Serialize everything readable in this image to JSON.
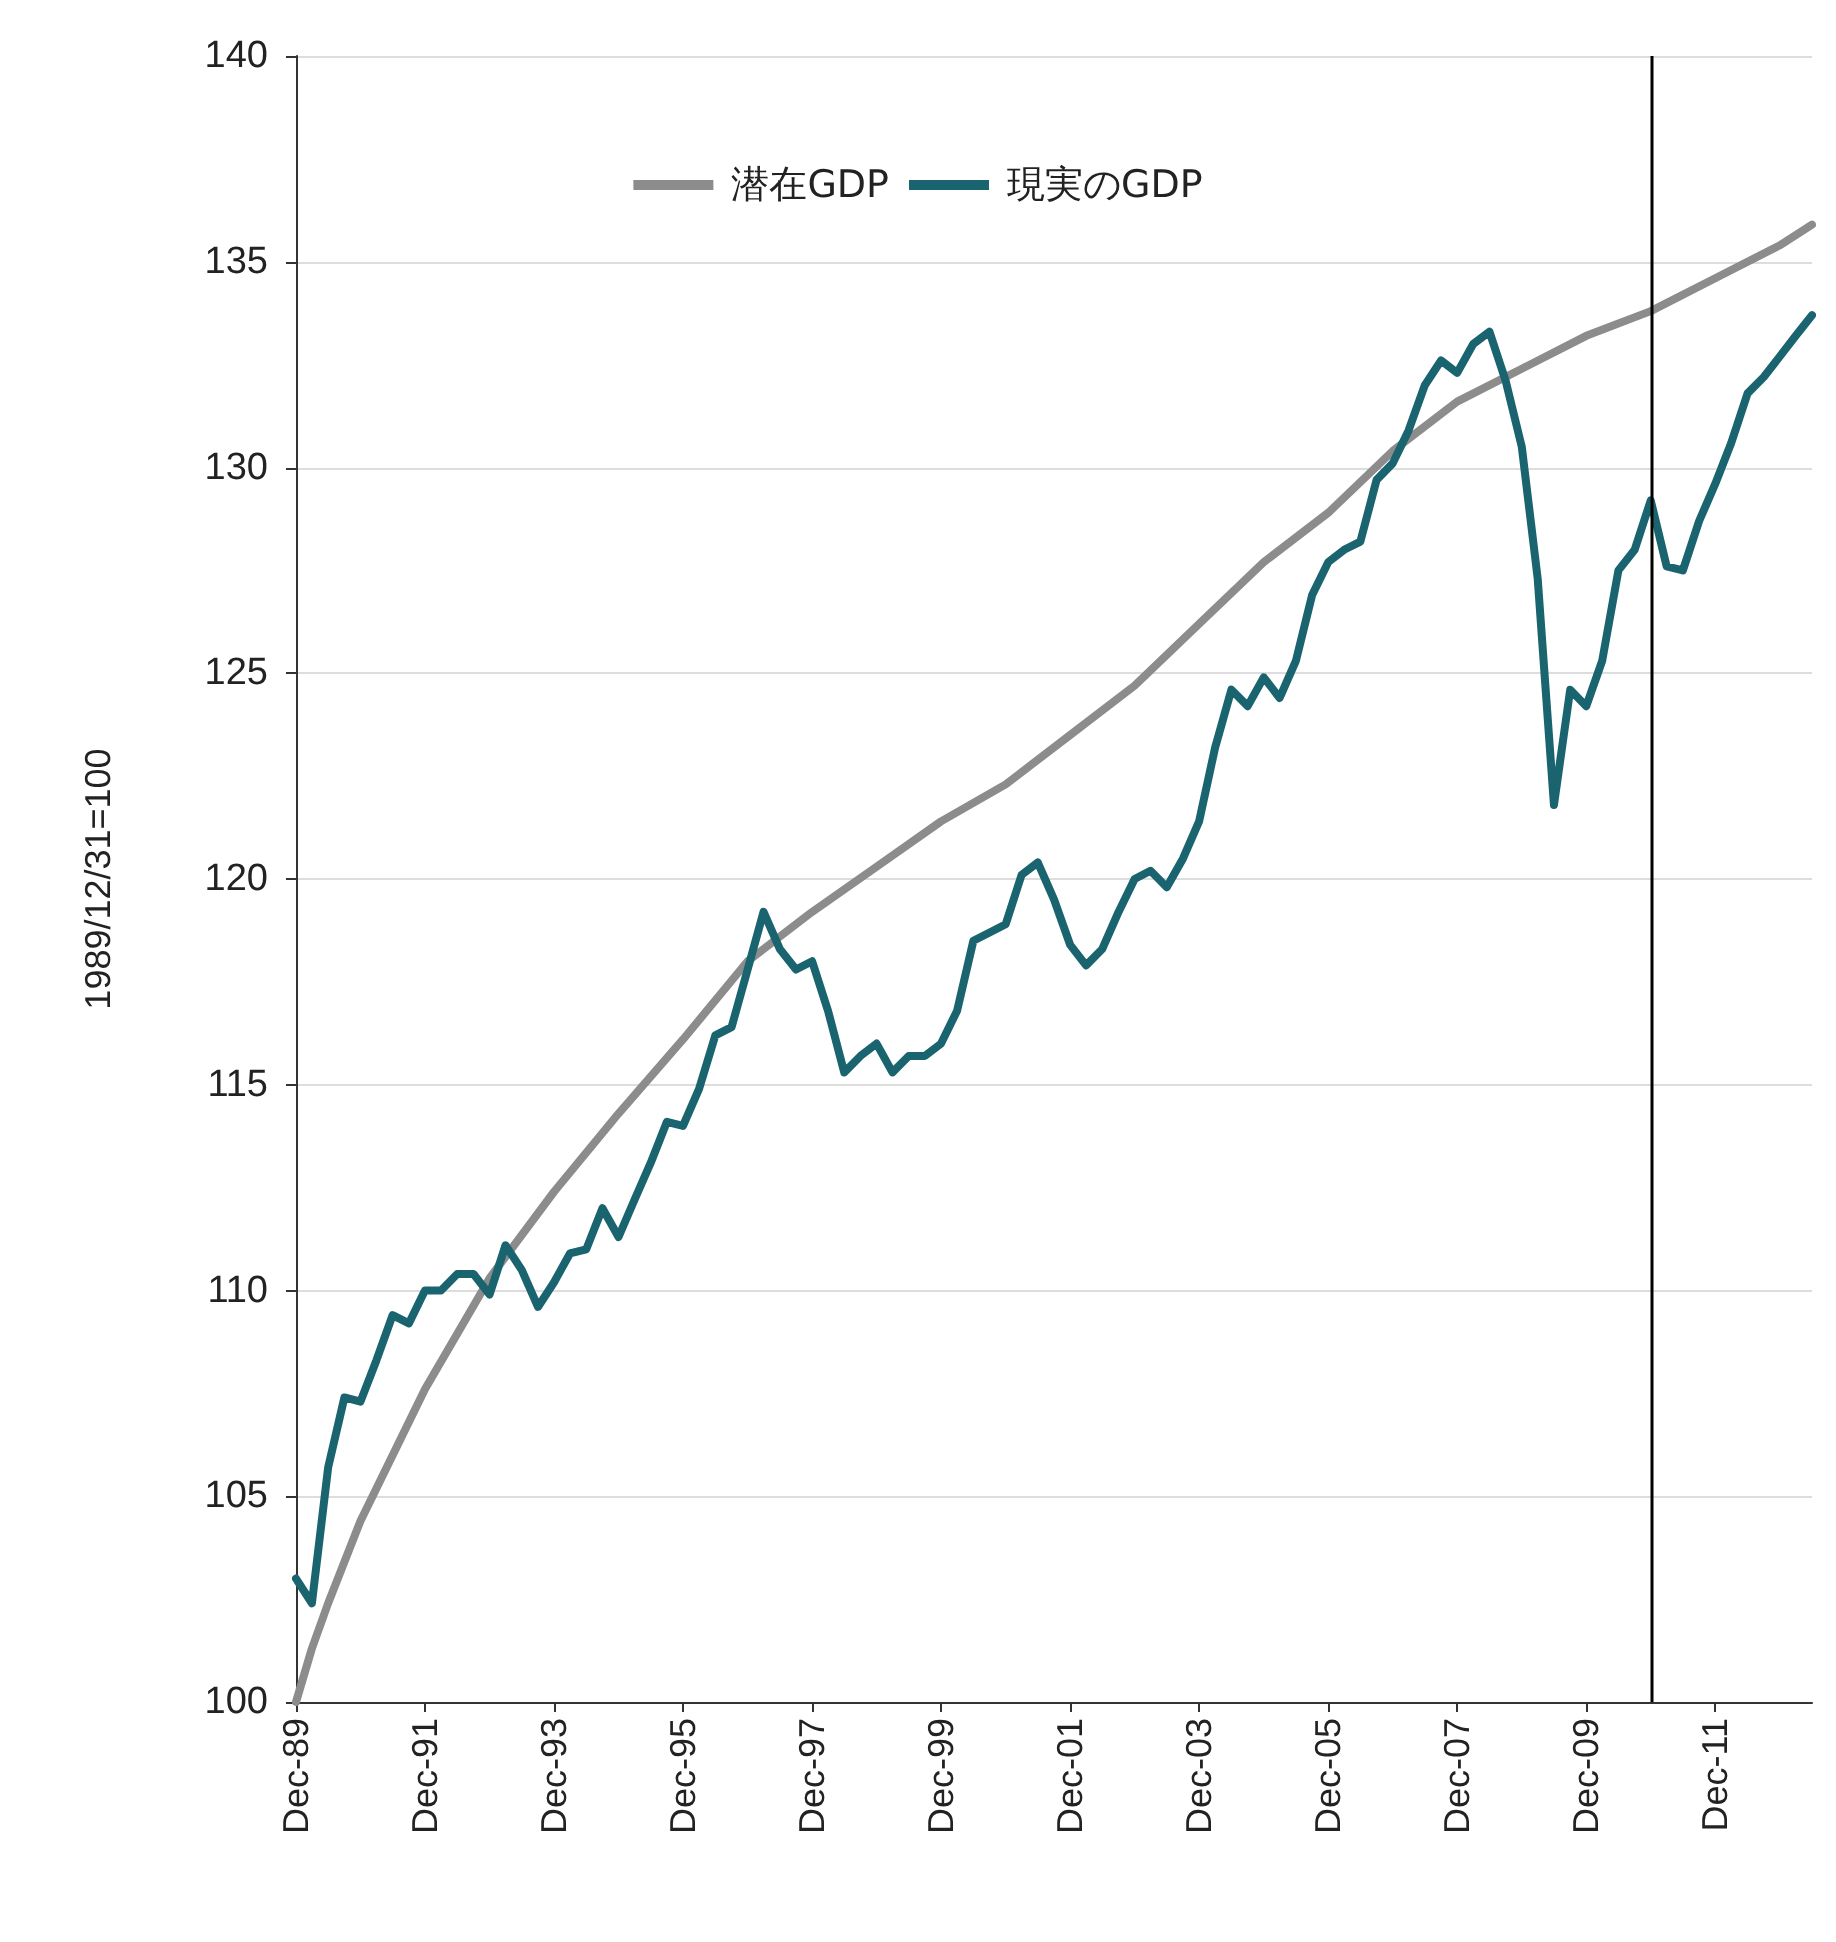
{
  "chart_data": {
    "type": "line",
    "ylabel": "1989/12/31=100",
    "x": [
      "1989-12",
      "1990-03",
      "1990-06",
      "1990-09",
      "1990-12",
      "1991-03",
      "1991-06",
      "1991-09",
      "1991-12",
      "1992-03",
      "1992-06",
      "1992-09",
      "1992-12",
      "1993-03",
      "1993-06",
      "1993-09",
      "1993-12",
      "1994-03",
      "1994-06",
      "1994-09",
      "1994-12",
      "1995-03",
      "1995-06",
      "1995-09",
      "1995-12",
      "1996-03",
      "1996-06",
      "1996-09",
      "1996-12",
      "1997-03",
      "1997-06",
      "1997-09",
      "1997-12",
      "1998-03",
      "1998-06",
      "1998-09",
      "1998-12",
      "1999-03",
      "1999-06",
      "1999-09",
      "1999-12",
      "2000-03",
      "2000-06",
      "2000-09",
      "2000-12",
      "2001-03",
      "2001-06",
      "2001-09",
      "2001-12",
      "2002-03",
      "2002-06",
      "2002-09",
      "2002-12",
      "2003-03",
      "2003-06",
      "2003-09",
      "2003-12",
      "2004-03",
      "2004-06",
      "2004-09",
      "2004-12",
      "2005-03",
      "2005-06",
      "2005-09",
      "2005-12",
      "2006-03",
      "2006-06",
      "2006-09",
      "2006-12",
      "2007-03",
      "2007-06",
      "2007-09",
      "2007-12",
      "2008-03",
      "2008-06",
      "2008-09",
      "2008-12",
      "2009-03",
      "2009-06",
      "2009-09",
      "2009-12",
      "2010-03",
      "2010-06",
      "2010-09",
      "2010-12",
      "2011-03",
      "2011-06",
      "2011-09",
      "2011-12",
      "2012-03",
      "2012-06",
      "2012-09",
      "2012-12",
      "2013-03",
      "2013-06"
    ],
    "series": [
      {
        "name": "潜在GDP",
        "color": "#8c8c8c",
        "x": [
          "1989-12",
          "1990-03",
          "1990-06",
          "1990-12",
          "1991-12",
          "1992-12",
          "1993-12",
          "1994-12",
          "1995-12",
          "1996-12",
          "1997-12",
          "1998-12",
          "1999-12",
          "2000-12",
          "2001-12",
          "2002-12",
          "2003-12",
          "2004-12",
          "2005-12",
          "2006-12",
          "2007-12",
          "2008-12",
          "2009-12",
          "2010-12",
          "2011-12",
          "2012-12",
          "2013-06"
        ],
        "values": [
          100.0,
          101.3,
          102.4,
          104.4,
          107.6,
          110.3,
          112.4,
          114.3,
          116.1,
          118.0,
          119.2,
          120.3,
          121.4,
          122.3,
          123.5,
          124.7,
          126.2,
          127.7,
          128.9,
          130.4,
          131.6,
          132.4,
          133.2,
          133.8,
          134.6,
          135.4,
          135.9
        ]
      },
      {
        "name": "現実のGDP",
        "color": "#1a6470",
        "values": [
          103.0,
          102.4,
          105.7,
          107.4,
          107.3,
          108.3,
          109.4,
          109.2,
          110.0,
          110.0,
          110.4,
          110.4,
          109.9,
          111.1,
          110.5,
          109.6,
          110.2,
          110.9,
          111.0,
          112.0,
          111.3,
          112.2,
          113.1,
          114.1,
          114.0,
          114.9,
          116.2,
          116.4,
          117.8,
          119.2,
          118.3,
          117.8,
          118.0,
          116.8,
          115.3,
          115.7,
          116.0,
          115.3,
          115.7,
          115.7,
          116.0,
          116.8,
          118.5,
          118.7,
          118.9,
          120.1,
          120.4,
          119.5,
          118.4,
          117.9,
          118.3,
          119.2,
          120.0,
          120.2,
          119.8,
          120.5,
          121.4,
          123.2,
          124.6,
          124.2,
          124.9,
          124.4,
          125.3,
          126.9,
          127.7,
          128.0,
          128.2,
          129.7,
          130.1,
          130.9,
          132.0,
          132.6,
          132.3,
          133.0,
          133.3,
          132.1,
          130.5,
          127.3,
          121.8,
          124.6,
          124.2,
          125.3,
          127.5,
          128.0,
          129.2,
          127.6,
          127.5,
          128.7,
          129.6,
          130.6,
          131.8,
          132.2,
          132.7,
          133.2,
          133.7
        ]
      }
    ],
    "xlim": [
      "1989-12",
      "2013-06"
    ],
    "xticks": [
      {
        "value": "1989-12",
        "label": "Dec-89"
      },
      {
        "value": "1991-12",
        "label": "Dec-91"
      },
      {
        "value": "1993-12",
        "label": "Dec-93"
      },
      {
        "value": "1995-12",
        "label": "Dec-95"
      },
      {
        "value": "1997-12",
        "label": "Dec-97"
      },
      {
        "value": "1999-12",
        "label": "Dec-99"
      },
      {
        "value": "2001-12",
        "label": "Dec-01"
      },
      {
        "value": "2003-12",
        "label": "Dec-03"
      },
      {
        "value": "2005-12",
        "label": "Dec-05"
      },
      {
        "value": "2007-12",
        "label": "Dec-07"
      },
      {
        "value": "2009-12",
        "label": "Dec-09"
      },
      {
        "value": "2011-12",
        "label": "Dec-11"
      }
    ],
    "ylim": [
      100,
      140
    ],
    "yticks": [
      100,
      105,
      110,
      115,
      120,
      125,
      130,
      135,
      140
    ],
    "ref_lines": [
      {
        "axis": "x",
        "value": "2010-12",
        "color": "#000000"
      }
    ],
    "grid": "y",
    "legend": "top",
    "marker": "none",
    "line_style": "solid"
  }
}
